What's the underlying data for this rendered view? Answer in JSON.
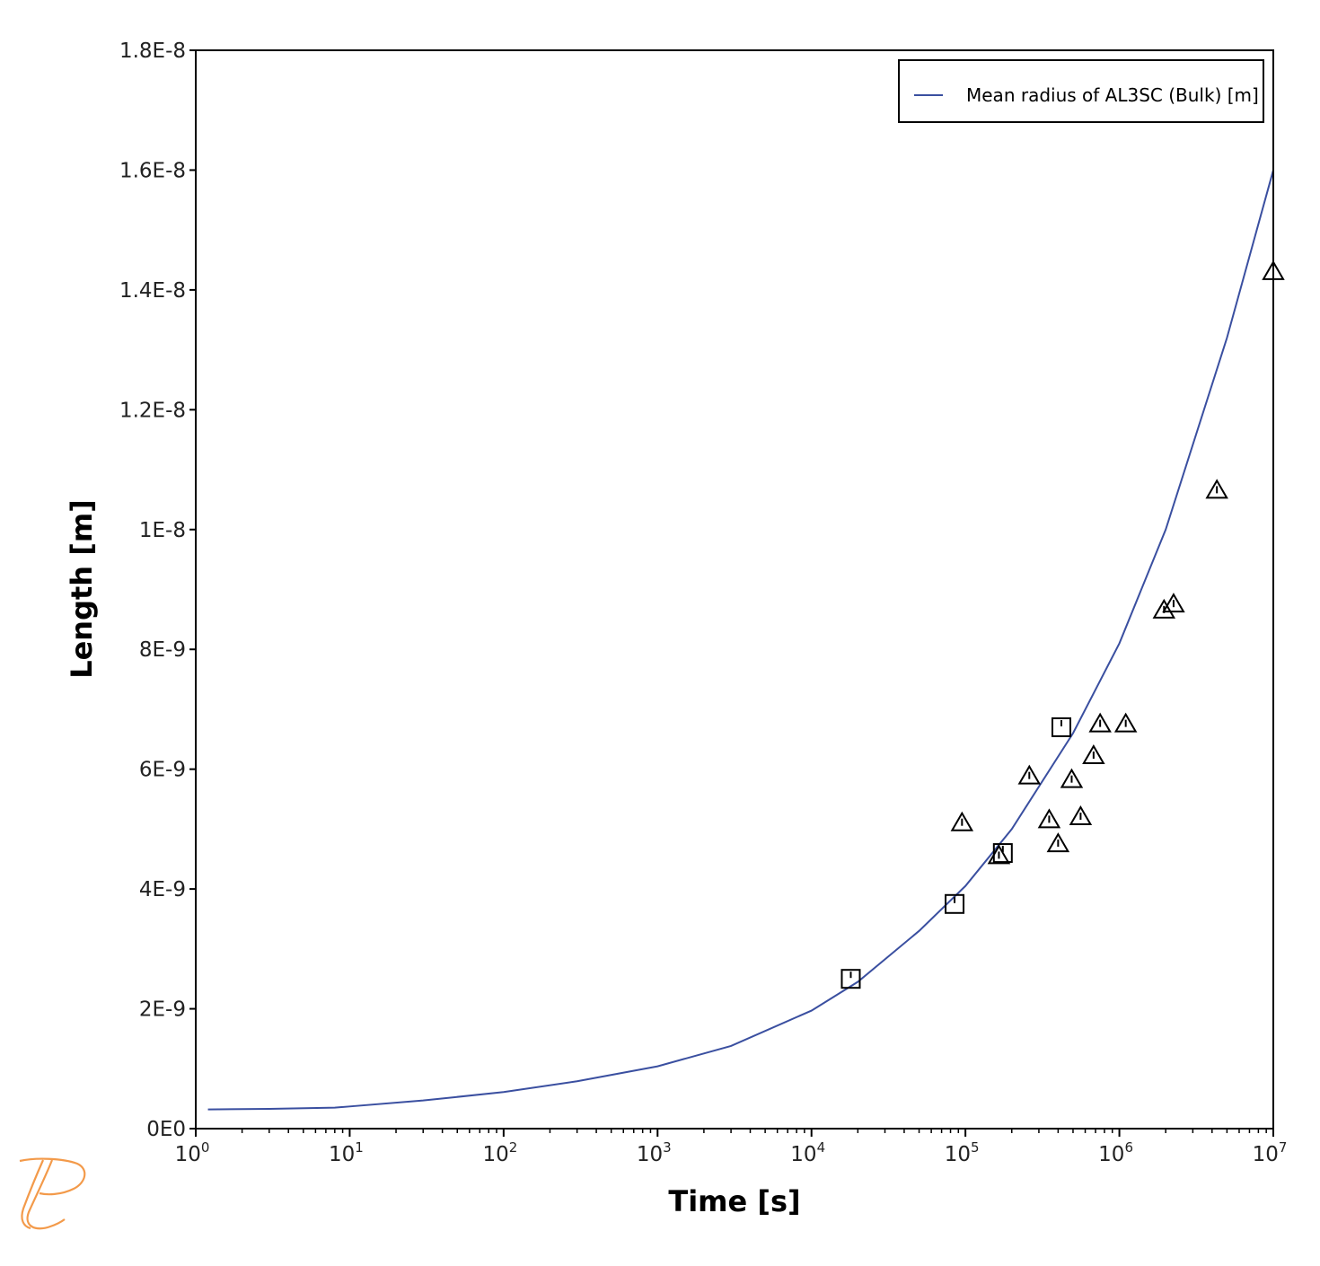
{
  "chart_data": {
    "type": "line",
    "xlabel": "Time [s]",
    "ylabel": "Length [m]",
    "xscale": "log",
    "xlim": [
      1,
      10000000
    ],
    "ylim": [
      0,
      1.8e-08
    ],
    "grid": false,
    "legend_placement": "top-right",
    "y_ticks": [
      {
        "value": 0,
        "label": "0E0"
      },
      {
        "value": 2e-09,
        "label": "2E-9"
      },
      {
        "value": 4e-09,
        "label": "4E-9"
      },
      {
        "value": 6e-09,
        "label": "6E-9"
      },
      {
        "value": 8e-09,
        "label": "8E-9"
      },
      {
        "value": 1e-08,
        "label": "1E-8"
      },
      {
        "value": 1.2e-08,
        "label": "1.2E-8"
      },
      {
        "value": 1.4e-08,
        "label": "1.4E-8"
      },
      {
        "value": 1.6e-08,
        "label": "1.6E-8"
      },
      {
        "value": 1.8e-08,
        "label": "1.8E-8"
      }
    ],
    "x_ticks": [
      {
        "value": 1,
        "base": "10",
        "exp": "0"
      },
      {
        "value": 10,
        "base": "10",
        "exp": "1"
      },
      {
        "value": 100,
        "base": "10",
        "exp": "2"
      },
      {
        "value": 1000,
        "base": "10",
        "exp": "3"
      },
      {
        "value": 10000,
        "base": "10",
        "exp": "4"
      },
      {
        "value": 100000,
        "base": "10",
        "exp": "5"
      },
      {
        "value": 1000000,
        "base": "10",
        "exp": "6"
      },
      {
        "value": 10000000,
        "base": "10",
        "exp": "7"
      }
    ],
    "series": [
      {
        "name": "Mean radius of AL3SC (Bulk) [m]",
        "color": "#3a4fa0",
        "x": [
          1.2,
          3,
          8,
          10,
          30,
          100,
          300,
          1000,
          3000,
          10000,
          20000,
          50000,
          100000,
          200000,
          500000,
          1000000,
          2000000,
          5000000,
          10000000
        ],
        "y": [
          3.2e-10,
          3.3e-10,
          3.5e-10,
          3.7e-10,
          4.7e-10,
          6.1e-10,
          7.9e-10,
          1.04e-09,
          1.38e-09,
          1.97e-09,
          2.45e-09,
          3.3e-09,
          4.05e-09,
          5e-09,
          6.6e-09,
          8.1e-09,
          1e-08,
          1.32e-08,
          1.6e-08
        ]
      }
    ],
    "markers": [
      {
        "shape": "square",
        "color": "#000000",
        "points": [
          {
            "x": 18000,
            "y": 2.5e-09
          },
          {
            "x": 85000,
            "y": 3.75e-09
          },
          {
            "x": 175000,
            "y": 4.6e-09
          },
          {
            "x": 420000,
            "y": 6.7e-09
          }
        ]
      },
      {
        "shape": "triangle",
        "color": "#000000",
        "points": [
          {
            "x": 95000,
            "y": 5.1e-09
          },
          {
            "x": 165000,
            "y": 4.55e-09
          },
          {
            "x": 260000,
            "y": 5.88e-09
          },
          {
            "x": 350000,
            "y": 5.15e-09
          },
          {
            "x": 400000,
            "y": 4.75e-09
          },
          {
            "x": 490000,
            "y": 5.82e-09
          },
          {
            "x": 560000,
            "y": 5.2e-09
          },
          {
            "x": 680000,
            "y": 6.22e-09
          },
          {
            "x": 750000,
            "y": 6.75e-09
          },
          {
            "x": 1100000,
            "y": 6.75e-09
          },
          {
            "x": 1950000,
            "y": 8.65e-09
          },
          {
            "x": 2250000,
            "y": 8.75e-09
          },
          {
            "x": 4300000,
            "y": 1.065e-08
          },
          {
            "x": 10000000,
            "y": 1.43e-08
          }
        ]
      }
    ]
  },
  "logo": {
    "name": "thermo-calc-logo-icon",
    "color": "#f39a4a"
  }
}
